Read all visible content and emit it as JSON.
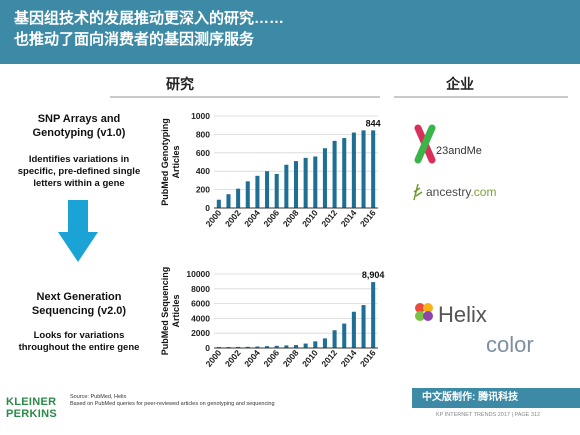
{
  "header": {
    "line1": "基因组技术的发展推动更深入的研究……",
    "line2": "也推动了面向消费者的基因测序服务"
  },
  "sections": {
    "research": "研究",
    "companies": "企业"
  },
  "blocks": [
    {
      "title_l1": "SNP Arrays and",
      "title_l2": "Genotyping (v1.0)",
      "desc": [
        "Identifies variations in",
        "specific, pre-defined single",
        "letters within a gene"
      ]
    },
    {
      "title_l1": "Next Generation",
      "title_l2": "Sequencing (v2.0)",
      "desc": [
        "Looks for variations",
        "throughout the entire gene"
      ]
    }
  ],
  "companies": {
    "c23andme": "23andMe",
    "ancestry": "ancestry",
    "ancestry_suffix": ".com",
    "helix": "Helix",
    "color": "color"
  },
  "source": {
    "line1": "Source: PubMed, Helix",
    "line2": "Based on PubMed queries for peer-reviewed articles on genotyping and sequencing"
  },
  "brand": {
    "line1": "KLEINER",
    "line2": "PERKINS"
  },
  "footer": {
    "bar": "中文版制作: 腾讯科技",
    "bottom": "KP INTERNET TRENDS 2017  |  PAGE 312"
  },
  "colors": {
    "header": "#3d8aa6",
    "bar": "#1f6f94",
    "arrow": "#1aa3d4"
  },
  "chart_data": [
    {
      "type": "bar",
      "title": "",
      "ylabel": "PubMed Genotyping Articles",
      "x": [
        "2000",
        "2001",
        "2002",
        "2003",
        "2004",
        "2005",
        "2006",
        "2007",
        "2008",
        "2009",
        "2010",
        "2011",
        "2012",
        "2013",
        "2014",
        "2015",
        "2016"
      ],
      "x_tick_labels": [
        "2000",
        "2002",
        "2004",
        "2006",
        "2008",
        "2010",
        "2012",
        "2014",
        "2016"
      ],
      "values": [
        90,
        150,
        210,
        290,
        350,
        400,
        370,
        470,
        510,
        545,
        560,
        650,
        730,
        760,
        820,
        844,
        844
      ],
      "ylim": [
        0,
        1000
      ],
      "yticks": [
        0,
        200,
        400,
        600,
        800,
        1000
      ],
      "annotation": "844",
      "grid": true
    },
    {
      "type": "bar",
      "title": "",
      "ylabel": "PubMed Sequencing Articles",
      "x": [
        "2000",
        "2001",
        "2002",
        "2003",
        "2004",
        "2005",
        "2006",
        "2007",
        "2008",
        "2009",
        "2010",
        "2011",
        "2012",
        "2013",
        "2014",
        "2015",
        "2016"
      ],
      "x_tick_labels": [
        "2000",
        "2002",
        "2004",
        "2006",
        "2008",
        "2010",
        "2012",
        "2014",
        "2016"
      ],
      "values": [
        130,
        130,
        150,
        160,
        200,
        250,
        300,
        350,
        400,
        600,
        900,
        1300,
        2400,
        3300,
        4900,
        5800,
        8904
      ],
      "ylim": [
        0,
        10000
      ],
      "yticks": [
        0,
        2000,
        4000,
        6000,
        8000,
        10000
      ],
      "yticks_labels": [
        "0",
        "2000",
        "4000",
        "6000",
        "8000",
        "10000"
      ],
      "annotation": "8,904",
      "grid": true
    }
  ]
}
